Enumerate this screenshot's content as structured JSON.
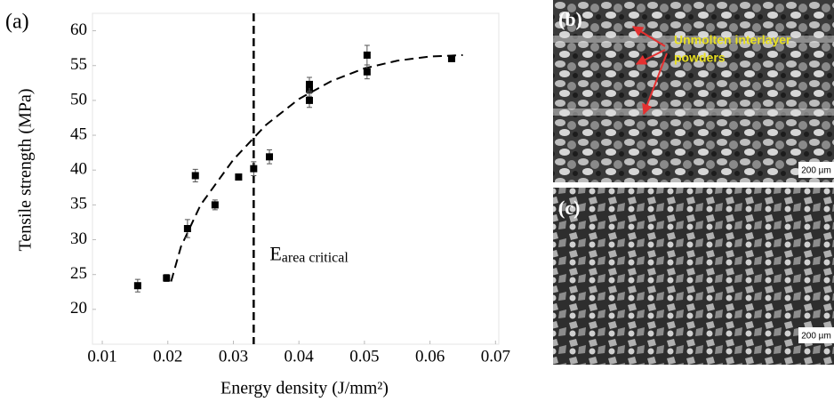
{
  "chart_data": {
    "type": "scatter",
    "panel_label": "(a)",
    "x_label": "Energy density (J/mm²)",
    "y_label": "Tensile strength (MPa)",
    "x": [
      0.0154,
      0.0198,
      0.023,
      0.0242,
      0.0272,
      0.0308,
      0.0331,
      0.0355,
      0.0416,
      0.0416,
      0.0416,
      0.0504,
      0.0504,
      0.0633
    ],
    "values": [
      23.4,
      24.5,
      31.6,
      39.2,
      35.0,
      39.0,
      40.2,
      41.9,
      50.0,
      51.6,
      52.3,
      54.1,
      56.5,
      56.0
    ],
    "errors": [
      0.9,
      0.5,
      1.3,
      0.9,
      0.7,
      0.4,
      1.0,
      1.0,
      1.0,
      1.0,
      1.0,
      1.0,
      1.4,
      0.4
    ],
    "color": "#000000",
    "fit": {
      "x": [
        0.0205,
        0.022,
        0.025,
        0.03,
        0.035,
        0.04,
        0.045,
        0.05,
        0.055,
        0.06,
        0.065
      ],
      "values": [
        24,
        29,
        35,
        41.5,
        46.5,
        50.2,
        52.8,
        54.6,
        55.7,
        56.3,
        56.5
      ]
    },
    "critical_x": 0.0331,
    "critical_label": {
      "text": "E",
      "subscript": "area critical"
    },
    "xlim": [
      0.0085,
      0.0705
    ],
    "xticks": [
      0.01,
      0.02,
      0.03,
      0.04,
      0.05,
      0.06,
      0.07
    ],
    "ylim": [
      15,
      62.5
    ],
    "yticks": [
      20,
      25,
      30,
      35,
      40,
      45,
      50,
      55,
      60
    ]
  },
  "micrographs": [
    {
      "label": "(b)",
      "annotation": [
        "Unmolten interlayer",
        "powders"
      ],
      "scale_bar": "200 µm"
    },
    {
      "label": "(c)",
      "scale_bar": "200 µm"
    }
  ]
}
